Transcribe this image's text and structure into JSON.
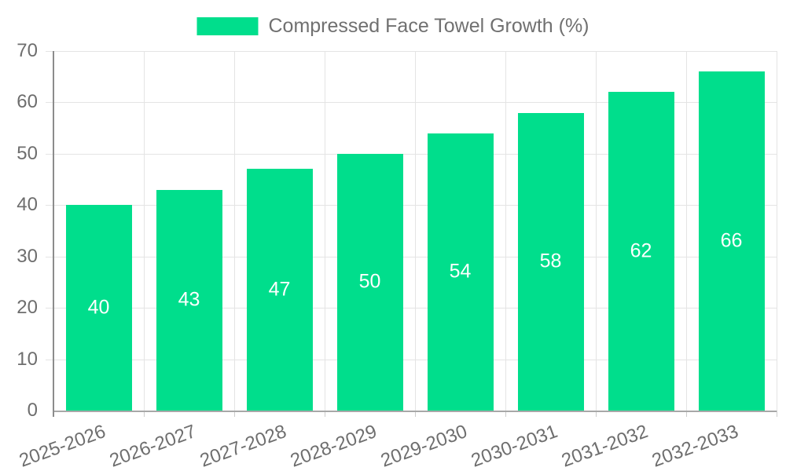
{
  "chart_data": {
    "type": "bar",
    "title": "Compressed Face Towel Growth (%)",
    "series_name": "Compressed Face Towel Growth (%)",
    "categories": [
      "2025-2026",
      "2026-2027",
      "2027-2028",
      "2028-2029",
      "2029-2030",
      "2030-2031",
      "2031-2032",
      "2032-2033"
    ],
    "values": [
      40,
      43,
      47,
      50,
      54,
      58,
      62,
      66
    ],
    "xlabel": "",
    "ylabel": "",
    "ylim": [
      0,
      70
    ],
    "yticks": [
      0,
      10,
      20,
      30,
      40,
      50,
      60,
      70
    ],
    "grid": true,
    "legend_position": "top",
    "bar_label_position": "inside-center"
  },
  "legend": {
    "label": "Compressed Face Towel Growth (%)"
  },
  "colors": {
    "bar": "#00DE8C",
    "bar_label": "#FFFFFF",
    "axis_text": "#6E6E6E",
    "legend_text": "#707070",
    "gridline": "#E4E4E4",
    "axis_line": "#8C8C8C",
    "baseline": "#A8A8A8",
    "tick": "#CCCCCC",
    "background": "#FFFFFF"
  }
}
